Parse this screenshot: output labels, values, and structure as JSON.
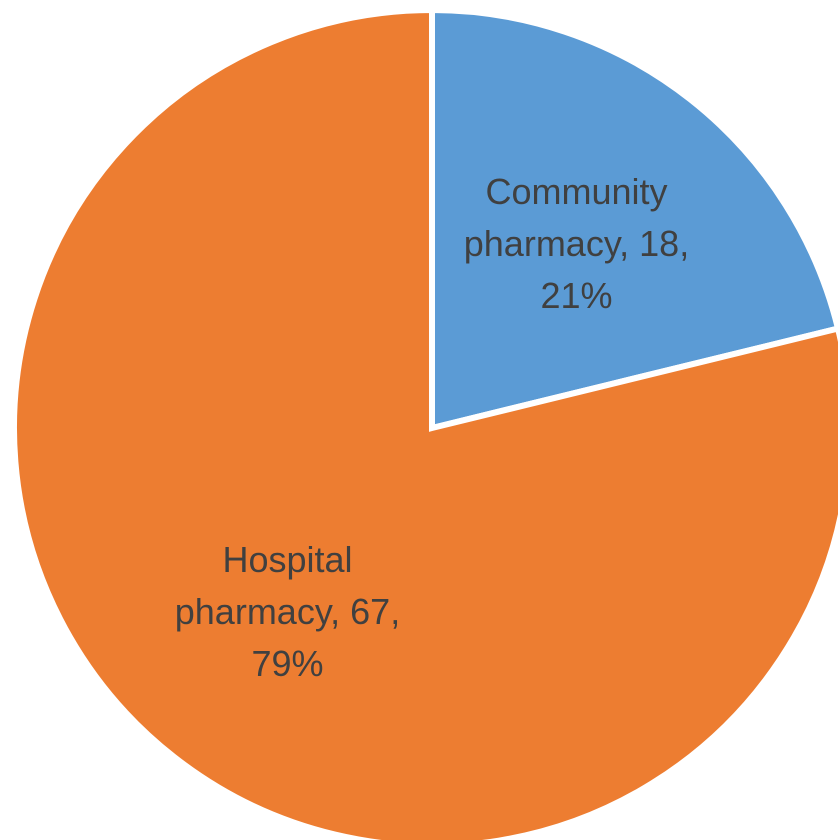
{
  "chart_data": {
    "type": "pie",
    "title": "",
    "slices": [
      {
        "name": "Community pharmacy",
        "value": 18,
        "percent": "21%",
        "color": "#5B9BD5",
        "label_lines": [
          "Community",
          "pharmacy, 18,",
          "21%"
        ]
      },
      {
        "name": "Hospital pharmacy",
        "value": 67,
        "percent": "79%",
        "color": "#ED7D31",
        "label_lines": [
          "Hospital",
          "pharmacy, 67,",
          "79%"
        ]
      }
    ],
    "start_angle": "12 o'clock",
    "direction": "clockwise",
    "legend": "none",
    "separator_color": "#FFFFFF"
  }
}
